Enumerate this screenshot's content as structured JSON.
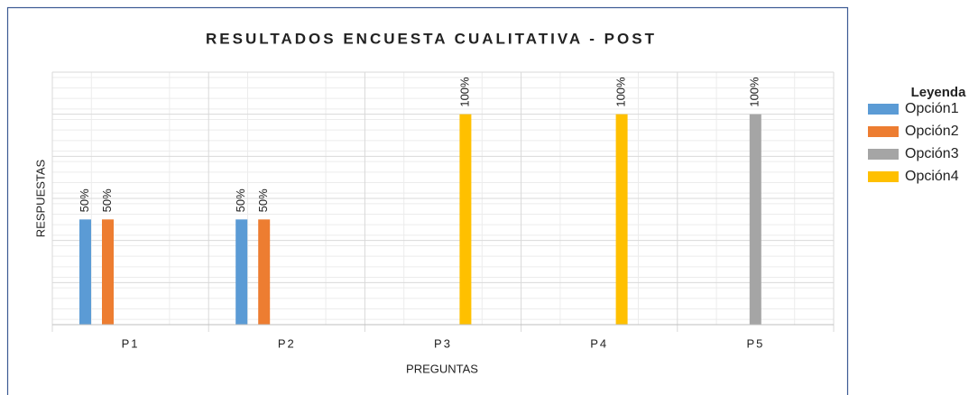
{
  "chart_data": {
    "type": "bar",
    "title": "RESULTADOS ENCUESTA CUALITATIVA - POST",
    "x_label": "PREGUNTAS",
    "y_label": "RESPUESTAS",
    "categories": [
      "P1",
      "P2",
      "P3",
      "P4",
      "P5"
    ],
    "series": [
      {
        "name": "Opción1",
        "color": "#5b9bd5",
        "values": [
          50,
          50,
          0,
          0,
          0
        ],
        "value_labels": [
          "50%",
          "50%",
          null,
          null,
          null
        ]
      },
      {
        "name": "Opción2",
        "color": "#ed7d31",
        "values": [
          50,
          50,
          0,
          0,
          0
        ],
        "value_labels": [
          "50%",
          "50%",
          null,
          null,
          null
        ]
      },
      {
        "name": "Opción3",
        "color": "#a5a5a5",
        "values": [
          0,
          0,
          0,
          0,
          100
        ],
        "value_labels": [
          null,
          null,
          null,
          null,
          "100%"
        ]
      },
      {
        "name": "Opción4",
        "color": "#ffc000",
        "values": [
          0,
          0,
          100,
          100,
          0
        ],
        "value_labels": [
          null,
          null,
          "100%",
          "100%",
          null
        ]
      }
    ],
    "legend_title": "Leyenda",
    "legend": "right",
    "ylim": [
      0,
      120
    ],
    "yticks": [
      0,
      20,
      40,
      60,
      80,
      100,
      120
    ],
    "grid": true
  }
}
